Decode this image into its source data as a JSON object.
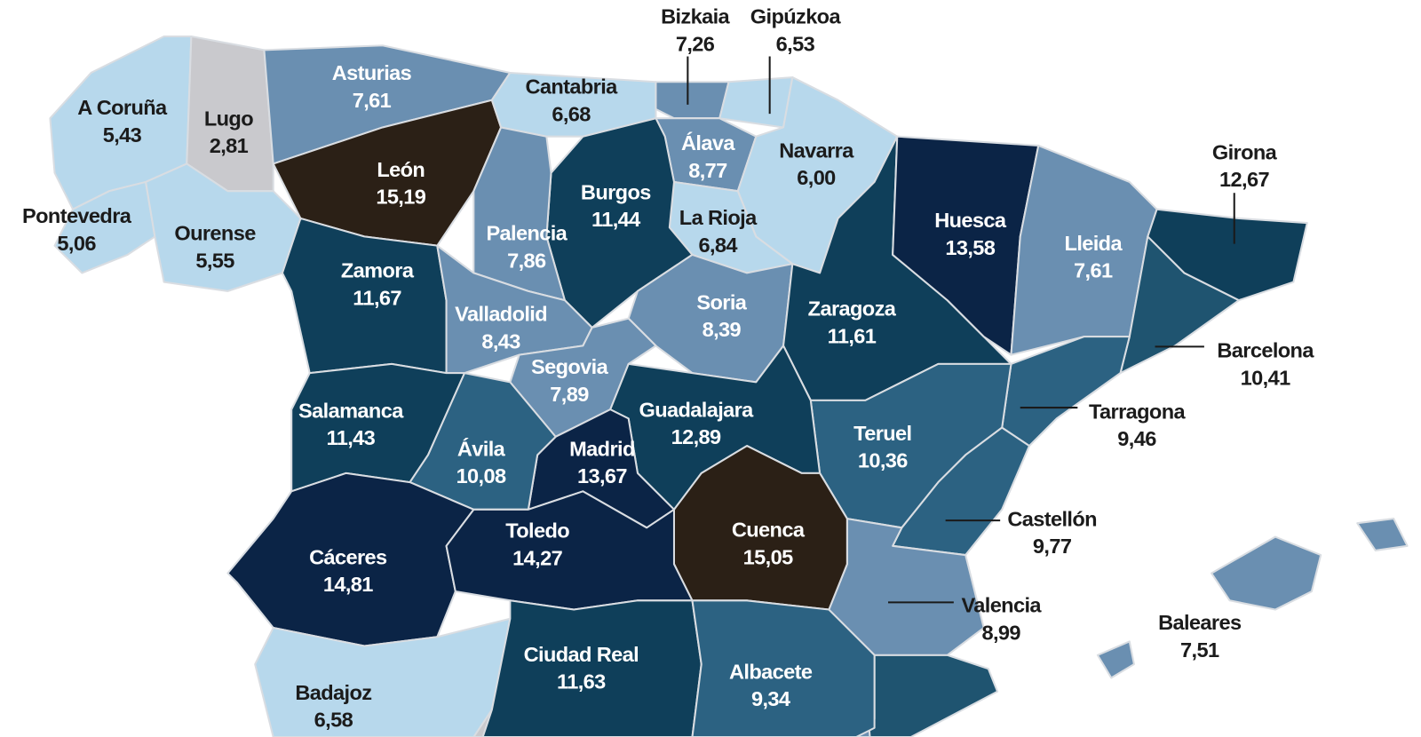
{
  "provinces": [
    {
      "name": "A Coruña",
      "value": "5,43",
      "color": "#b7d8ec"
    },
    {
      "name": "Lugo",
      "value": "2,81",
      "color": "#c9c9cd"
    },
    {
      "name": "Pontevedra",
      "value": "5,06",
      "color": "#b7d8ec"
    },
    {
      "name": "Ourense",
      "value": "5,55",
      "color": "#b7d8ec"
    },
    {
      "name": "Asturias",
      "value": "7,61",
      "color": "#6a8fb1"
    },
    {
      "name": "León",
      "value": "15,19",
      "color": "#2b2016"
    },
    {
      "name": "Cantabria",
      "value": "6,68",
      "color": "#b7d8ec"
    },
    {
      "name": "Bizkaia",
      "value": "7,26",
      "color": "#6a8fb1"
    },
    {
      "name": "Gipúzkoa",
      "value": "6,53",
      "color": "#b7d8ec"
    },
    {
      "name": "Álava",
      "value": "8,77",
      "color": "#6a8fb1"
    },
    {
      "name": "Navarra",
      "value": "6,00",
      "color": "#b7d8ec"
    },
    {
      "name": "La Rioja",
      "value": "6,84",
      "color": "#b7d8ec"
    },
    {
      "name": "Burgos",
      "value": "11,44",
      "color": "#0f3f5a"
    },
    {
      "name": "Palencia",
      "value": "7,86",
      "color": "#6a8fb1"
    },
    {
      "name": "Zamora",
      "value": "11,67",
      "color": "#0f3f5a"
    },
    {
      "name": "Valladolid",
      "value": "8,43",
      "color": "#6a8fb1"
    },
    {
      "name": "Soria",
      "value": "8,39",
      "color": "#6a8fb1"
    },
    {
      "name": "Segovia",
      "value": "7,89",
      "color": "#6a8fb1"
    },
    {
      "name": "Zaragoza",
      "value": "11,61",
      "color": "#0f3f5a"
    },
    {
      "name": "Huesca",
      "value": "13,58",
      "color": "#0b2446"
    },
    {
      "name": "Lleida",
      "value": "7,61",
      "color": "#6a8fb1"
    },
    {
      "name": "Girona",
      "value": "12,67",
      "color": "#0f3f5a"
    },
    {
      "name": "Barcelona",
      "value": "10,41",
      "color": "#1f5470"
    },
    {
      "name": "Tarragona",
      "value": "9,46",
      "color": "#2c6282"
    },
    {
      "name": "Teruel",
      "value": "10,36",
      "color": "#2c6282"
    },
    {
      "name": "Castellón",
      "value": "9,77",
      "color": "#2c6282"
    },
    {
      "name": "Valencia",
      "value": "8,99",
      "color": "#6a8fb1"
    },
    {
      "name": "Guadalajara",
      "value": "12,89",
      "color": "#0f3f5a"
    },
    {
      "name": "Madrid",
      "value": "13,67",
      "color": "#0b2446"
    },
    {
      "name": "Cuenca",
      "value": "15,05",
      "color": "#2b2016"
    },
    {
      "name": "Salamanca",
      "value": "11,43",
      "color": "#0f3f5a"
    },
    {
      "name": "Ávila",
      "value": "10,08",
      "color": "#2c6282"
    },
    {
      "name": "Cáceres",
      "value": "14,81",
      "color": "#0b2446"
    },
    {
      "name": "Toledo",
      "value": "14,27",
      "color": "#0b2446"
    },
    {
      "name": "Badajoz",
      "value": "6,58",
      "color": "#b7d8ec"
    },
    {
      "name": "Ciudad Real",
      "value": "11,63",
      "color": "#0f3f5a"
    },
    {
      "name": "Albacete",
      "value": "9,34",
      "color": "#2c6282"
    },
    {
      "name": "Baleares",
      "value": "7,51",
      "color": "#6a8fb1"
    }
  ]
}
